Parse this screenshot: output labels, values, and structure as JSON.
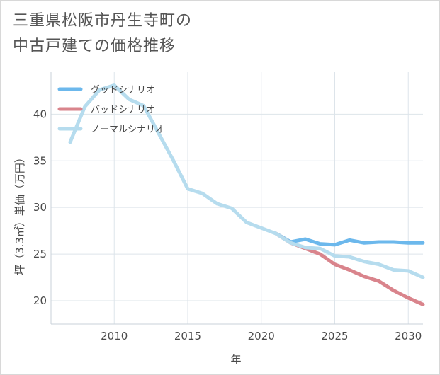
{
  "title_lines": [
    "三重県松阪市丹生寺町の",
    "中古戸建ての価格推移"
  ],
  "chart_data": {
    "type": "line",
    "xlabel": "年",
    "ylabel": "坪（3.3㎡）単価（万円）",
    "xlim": [
      2005.7,
      2031
    ],
    "ylim": [
      17.5,
      44.5
    ],
    "xticks": [
      2010,
      2015,
      2020,
      2025,
      2030
    ],
    "yticks": [
      20,
      25,
      30,
      35,
      40
    ],
    "grid": true,
    "legend_position": "top-left",
    "series": [
      {
        "name": "グッドシナリオ",
        "color": "#6cb8ec",
        "x": [
          2021,
          2022,
          2023,
          2024,
          2025,
          2026,
          2027,
          2028,
          2029,
          2030,
          2031
        ],
        "y": [
          27.2,
          26.3,
          26.6,
          26.1,
          26.0,
          26.5,
          26.2,
          26.3,
          26.3,
          26.2,
          26.2
        ]
      },
      {
        "name": "バッドシナリオ",
        "color": "#d9848c",
        "x": [
          2021,
          2022,
          2023,
          2024,
          2025,
          2026,
          2027,
          2028,
          2029,
          2030,
          2031
        ],
        "y": [
          27.2,
          26.2,
          25.6,
          25.0,
          23.9,
          23.3,
          22.6,
          22.1,
          21.1,
          20.3,
          19.6
        ]
      },
      {
        "name": "ノーマルシナリオ",
        "color": "#b6dcee",
        "x": [
          2007,
          2008,
          2009,
          2010,
          2011,
          2012,
          2013,
          2014,
          2015,
          2016,
          2017,
          2018,
          2019,
          2020,
          2021,
          2022,
          2023,
          2024,
          2025,
          2026,
          2027,
          2028,
          2029,
          2030,
          2031
        ],
        "y": [
          37.0,
          40.8,
          42.6,
          43.1,
          41.6,
          40.9,
          38.0,
          35.1,
          32.0,
          31.5,
          30.4,
          29.9,
          28.4,
          27.8,
          27.2,
          26.2,
          25.7,
          25.6,
          24.8,
          24.7,
          24.2,
          23.9,
          23.3,
          23.2,
          22.5
        ]
      }
    ]
  }
}
